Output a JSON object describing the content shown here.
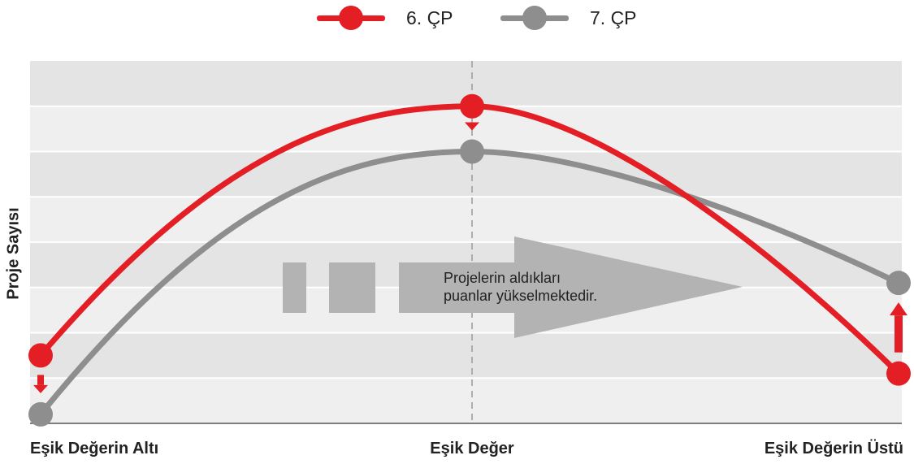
{
  "chart_data": {
    "type": "line",
    "title": "",
    "ylabel": "Proje Sayısı",
    "xlabel": "",
    "categories": [
      "Eşik Değerin Altı",
      "Eşik Değer",
      "Eşik Değerin Üstü"
    ],
    "series": [
      {
        "name": "6. ÇP",
        "color": "#e31e24",
        "values": [
          1.5,
          7.0,
          1.1
        ]
      },
      {
        "name": "7. ÇP",
        "color": "#8e8e8e",
        "values": [
          0.2,
          6.0,
          3.1
        ]
      }
    ],
    "ylim": [
      0,
      8
    ],
    "grid": true,
    "legend": "top-center",
    "annotation": [
      "Projelerin aldıkları",
      "puanlar yükselmektedir."
    ],
    "colors": {
      "band_dark": "#e4e4e4",
      "band_light": "#efefef",
      "arrow": "#b3b3b3"
    }
  }
}
